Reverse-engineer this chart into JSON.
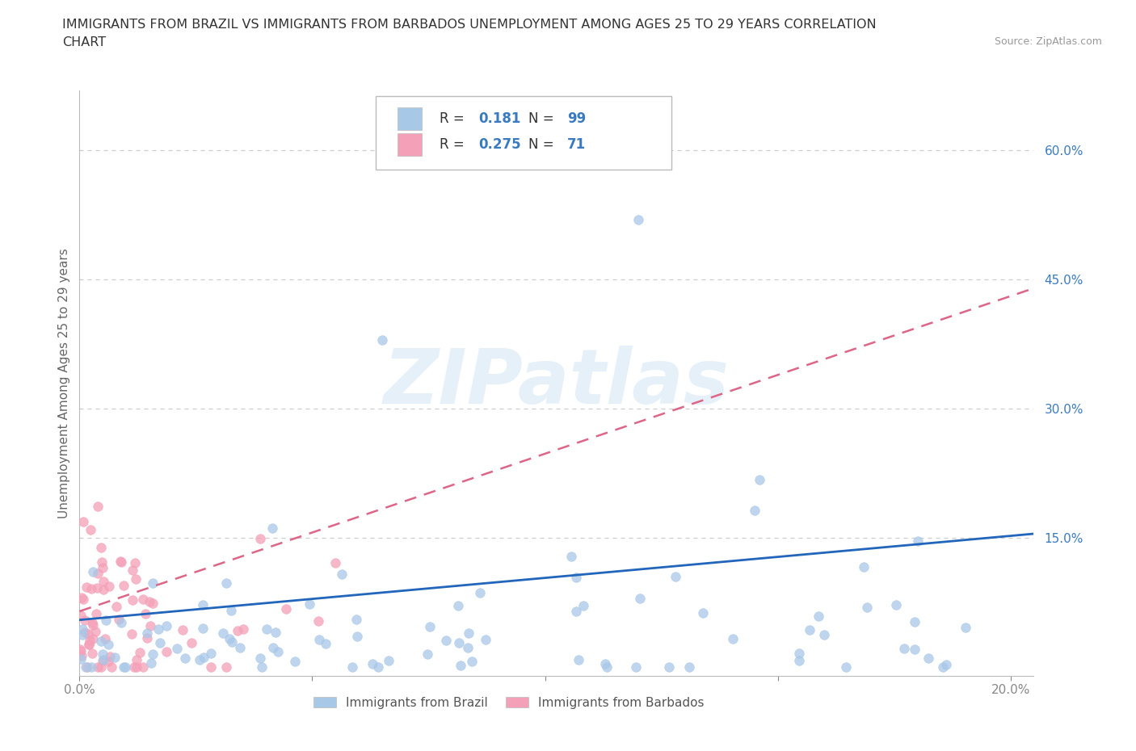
{
  "title_line1": "IMMIGRANTS FROM BRAZIL VS IMMIGRANTS FROM BARBADOS UNEMPLOYMENT AMONG AGES 25 TO 29 YEARS CORRELATION",
  "title_line2": "CHART",
  "source_text": "Source: ZipAtlas.com",
  "ylabel": "Unemployment Among Ages 25 to 29 years",
  "xlim": [
    0.0,
    0.205
  ],
  "ylim": [
    -0.01,
    0.67
  ],
  "brazil_color": "#a8c8e8",
  "barbados_color": "#f4a0b8",
  "brazil_line_color": "#2266bb",
  "barbados_line_color": "#dd6688",
  "legend_R_brazil": "0.181",
  "legend_N_brazil": "99",
  "legend_R_barbados": "0.275",
  "legend_N_barbados": "71",
  "watermark": "ZIPatlas",
  "grid_color": "#cccccc",
  "title_color": "#333333",
  "axis_color": "#888888",
  "tick_label_color": "#3a7bbf",
  "axis_label_color": "#666666"
}
